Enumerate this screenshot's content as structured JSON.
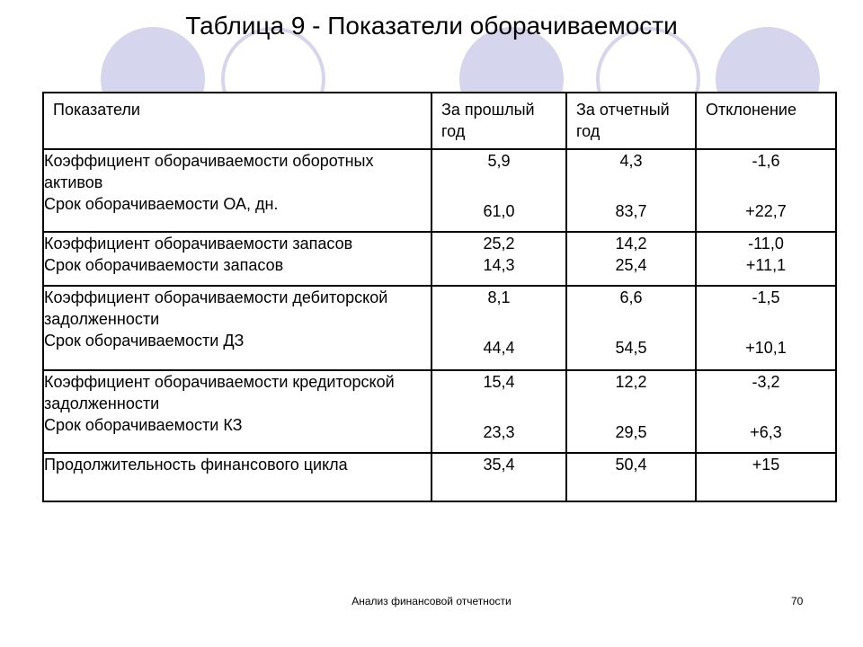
{
  "title": "Таблица 9 - Показатели оборачиваемости",
  "table": {
    "headers": [
      "Показатели",
      "За прошлый год",
      "За отчетный год",
      "Отклонение"
    ],
    "rows": [
      {
        "label1": "Коэффициент оборачиваемости оборотных активов",
        "label2": "Срок оборачиваемости ОА, дн.",
        "prev1": "5,9",
        "prev2": "61,0",
        "curr1": "4,3",
        "curr2": "83,7",
        "dev1": "-1,6",
        "dev2": "+22,7"
      },
      {
        "label1": "Коэффициент оборачиваемости запасов",
        "label2": "Срок оборачиваемости запасов",
        "prev1": "25,2",
        "prev2": "14,3",
        "curr1": "14,2",
        "curr2": "25,4",
        "dev1": "-11,0",
        "dev2": "+11,1"
      },
      {
        "label1": "Коэффициент оборачиваемости дебиторской задолженности",
        "label2": "Срок оборачиваемости ДЗ",
        "prev1": "8,1",
        "prev2": "44,4",
        "curr1": "6,6",
        "curr2": "54,5",
        "dev1": "-1,5",
        "dev2": "+10,1"
      },
      {
        "label1": "Коэффициент оборачиваемости кредиторской задолженности",
        "label2": "Срок оборачиваемости КЗ",
        "prev1": "15,4",
        "prev2": "23,3",
        "curr1": "12,2",
        "curr2": "29,5",
        "dev1": "-3,2",
        "dev2": "+6,3"
      },
      {
        "label1": "Продолжительность финансового цикла",
        "prev1": "35,4",
        "curr1": "50,4",
        "dev1": "+15"
      }
    ]
  },
  "footer": {
    "text": "Анализ финансовой отчетности",
    "page_number": "70"
  }
}
